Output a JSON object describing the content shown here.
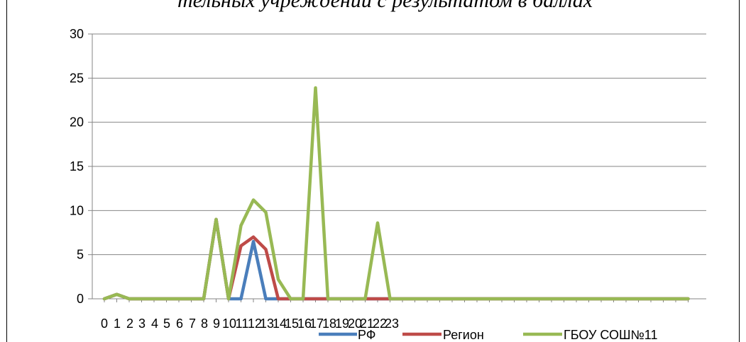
{
  "document": {
    "top_text": "тельных учреждений с результатом в баллах"
  },
  "chart_data": {
    "type": "line",
    "title": "",
    "xlabel": "",
    "ylabel": "",
    "ylim": [
      0,
      30
    ],
    "yticks": [
      0,
      5,
      10,
      15,
      20,
      25,
      30
    ],
    "x_tick_labels": [
      "0",
      "1",
      "2",
      "3",
      "4",
      "5",
      "6",
      "7",
      "8",
      "9",
      "10",
      "11",
      "12",
      "13",
      "14",
      "15",
      "16",
      "17",
      "18",
      "19",
      "20",
      "21",
      "22",
      "23"
    ],
    "x_count": 48,
    "grid": true,
    "legend_position": "bottom",
    "series": [
      {
        "name": "РФ",
        "color": "#4a7ebb",
        "values": [
          0,
          0.5,
          0,
          0,
          0,
          0,
          0,
          0,
          0,
          9,
          0,
          0,
          6.5,
          0,
          0,
          0,
          0,
          0,
          0,
          0,
          0,
          0,
          0,
          0,
          0,
          0,
          0,
          0,
          0,
          0,
          0,
          0,
          0,
          0,
          0,
          0,
          0,
          0,
          0,
          0,
          0,
          0,
          0,
          0,
          0,
          0,
          0,
          0
        ]
      },
      {
        "name": "Регион",
        "color": "#be4b48",
        "values": [
          0,
          0.5,
          0,
          0,
          0,
          0,
          0,
          0,
          0,
          9,
          0,
          6,
          7,
          5.6,
          0,
          0,
          0,
          0,
          0,
          0,
          0,
          0,
          0,
          0,
          0,
          0,
          0,
          0,
          0,
          0,
          0,
          0,
          0,
          0,
          0,
          0,
          0,
          0,
          0,
          0,
          0,
          0,
          0,
          0,
          0,
          0,
          0,
          0
        ]
      },
      {
        "name": "ГБОУ СОШ№11",
        "color": "#98b954",
        "values": [
          0,
          0.5,
          0,
          0,
          0,
          0,
          0,
          0,
          0,
          9,
          0,
          8.3,
          11.2,
          9.8,
          2.2,
          0,
          0,
          23.9,
          0,
          0,
          0,
          0,
          8.6,
          0,
          0,
          0,
          0,
          0,
          0,
          0,
          0,
          0,
          0,
          0,
          0,
          0,
          0,
          0,
          0,
          0,
          0,
          0,
          0,
          0,
          0,
          0,
          0,
          0
        ]
      }
    ]
  }
}
